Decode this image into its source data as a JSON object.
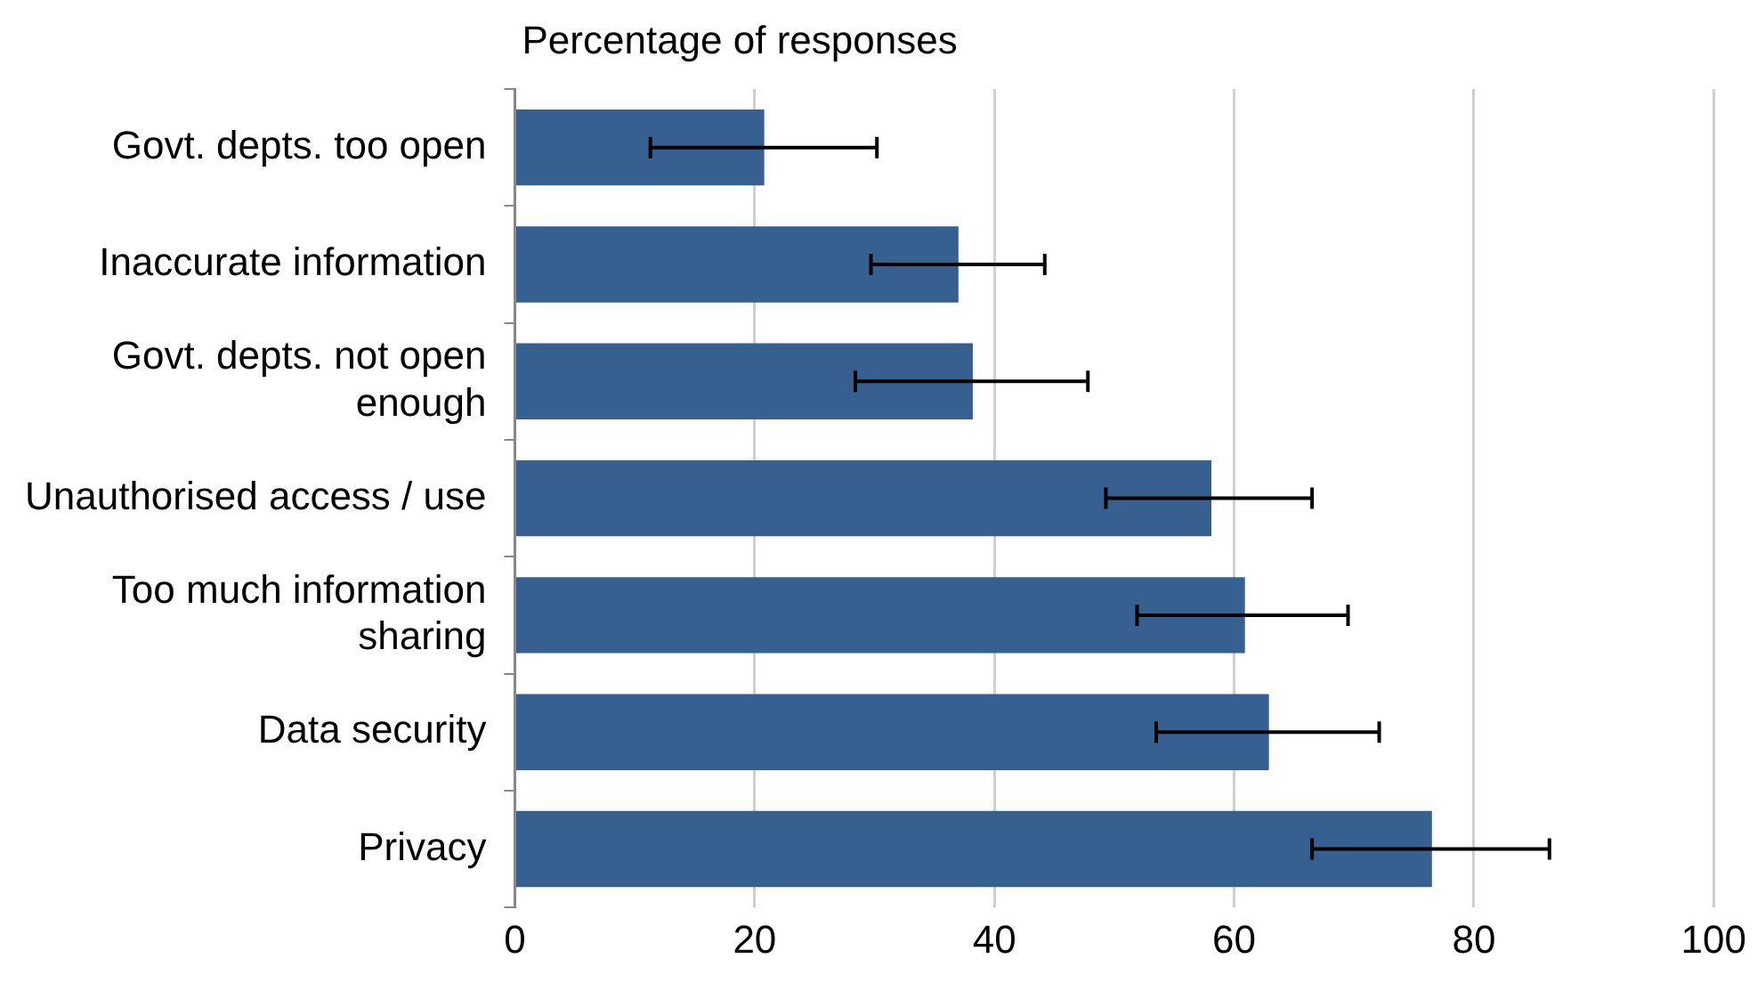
{
  "chart_data": {
    "type": "bar",
    "orientation": "horizontal",
    "xlabel": "Percentage of responses",
    "categories": [
      "Govt. depts. too open",
      "Inaccurate information",
      "Govt. depts. not open enough",
      "Unauthorised access / use",
      "Too much information sharing",
      "Data security",
      "Privacy"
    ],
    "values": [
      20.8,
      37,
      38.2,
      58.1,
      60.9,
      62.9,
      76.5
    ],
    "errors": [
      [
        11.3,
        30.2
      ],
      [
        29.7,
        44.2
      ],
      [
        28.4,
        47.8
      ],
      [
        49.3,
        66.5
      ],
      [
        51.9,
        69.5
      ],
      [
        53.5,
        72.1
      ],
      [
        66.5,
        86.3
      ]
    ],
    "color": "#35608f",
    "xlim": [
      0,
      100
    ],
    "xticks": [
      0,
      20,
      40,
      60,
      80,
      100
    ],
    "grid": "x",
    "legend": false
  }
}
